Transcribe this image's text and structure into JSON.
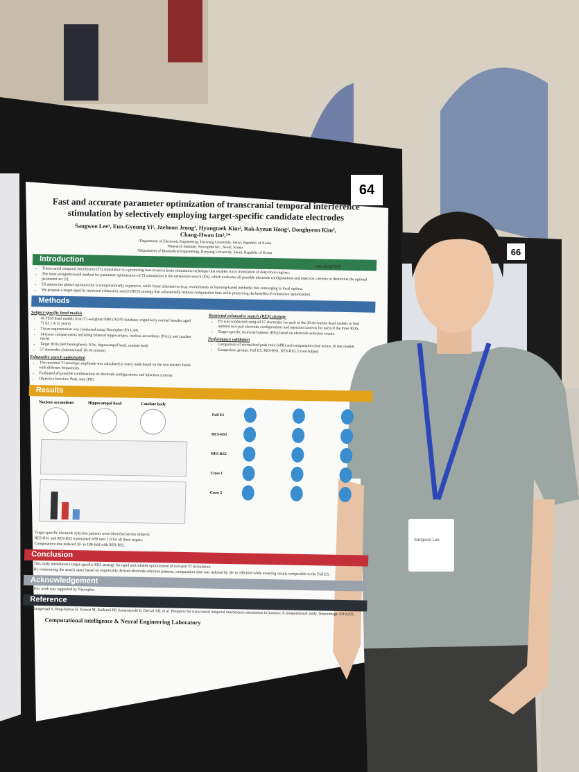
{
  "poster": {
    "number": "64",
    "title": "Fast and accurate parameter optimization of transcranial temporal interference stimulation by selectively employing target-specific candidate electrodes",
    "authors": "Sangwoo Lee¹, Eun-Gyoung Yi², Jaehoon Jeong¹, Hyungtaek Kim², Rak-kyeun Hong², Donghyeon Kim², Chang-Hwan Im¹,³*",
    "affiliations": [
      "¹Department of Electronic Engineering, Hanyang University, Seoul, Republic of Korea",
      "²Research Institute, Neurophet Inc., Seoul, Korea",
      "³Department of Biomedical Engineering, Hanyang University, Seoul, Republic of Korea"
    ],
    "logo": "neurophet",
    "introduction": {
      "heading": "Introduction",
      "bullets": [
        "Transcranial temporal interference (TI) stimulation is a promising non-invasive brain stimulation technique that enables focal stimulation of deep brain regions.",
        "The most straightforward method for parameter optimization of TI stimulation is the exhaustive search (ES), which evaluates all possible electrode configurations and injection currents to determine the optimal parameter set [1].",
        "ES attains the global optimum but is computationally expensive, while faster alternatives (e.g., evolutionary or learning-based methods) risk converging to local optima.",
        "We propose a target-specific restricted exhaustive search (RES) strategy that substantially reduces computation time while preserving the benefits of exhaustive optimization."
      ]
    },
    "methods": {
      "heading": "Methods",
      "left": [
        {
          "subheading": "Subject-specific head models",
          "bullets": [
            "40 FEM head models from T1-weighted MRI (ADNI database; cognitively normal females aged 71.62 ± 4.12 years)",
            "Tissue segmentation was conducted using Neurophet tES LAB.",
            "14 tissue compartments including bilateral hippocampus, nucleus accumbens (NAc), and caudate nuclei",
            "Target ROIs (left hemisphere): NAc, hippocampal head, caudate body",
            "57 electrodes (international 10-10 system)"
          ]
        },
        {
          "subheading": "Exhaustive search optimization",
          "bullets": [
            "The maximal TI envelope amplitude was calculated at every node based on the two electric fields with different frequencies.",
            "Evaluated all possible combinations of electrode configurations and injection currents",
            "Objective function: Peak ratio (PR)"
          ]
        }
      ],
      "right": [
        {
          "subheading": "Restricted exhaustive search (RES) strategy",
          "bullets": [
            "ES was conducted using all 57 electrodes for each of the 30 derivation head models to find optimal two-pair electrode configurations and injection currents for each of the three ROIs.",
            "Target-specific restricted subsets (RSs) based on electrode selection counts."
          ]
        },
        {
          "subheading": "Performance validation",
          "bullets": [
            "Comparison of normalized peak ratio (nPR) and computation time across 10 test models",
            "Comparison groups: Full ES, RES-RS1, RES-RS2, Cross-subject"
          ]
        }
      ]
    },
    "results": {
      "heading": "Results",
      "panels": [
        "Nucleus accumbens",
        "Hippocampal head",
        "Caudate body"
      ],
      "rows": [
        "Full ES",
        "RES-RS1",
        "RES-RS2",
        "Cross 1",
        "Cross 2"
      ],
      "bullets": [
        "Target-specific electrode selection patterns were identified across subjects.",
        "RES-RS1 and RES-RS2 maintained nPR near 1.0 for all three targets.",
        "Computation time reduced 30- to 100-fold with RES-RS2."
      ]
    },
    "conclusion": {
      "heading": "Conclusion",
      "bullets": [
        "This study introduced a target-specific RES strategy for rapid and reliable optimization of two-pair TI stimulation.",
        "By constraining the search space based on empirically derived electrode selection patterns, computation time was reduced by 30- to 100-fold while ensuring results comparable to the Full ES."
      ]
    },
    "acknowledgement": {
      "heading": "Acknowledgement",
      "text": "This work was supported by Neurophet."
    },
    "reference": {
      "heading": "Reference",
      "text": "[1] Rampersad S, Roig-Solvas B, Yarossi M, Kulkarni PP, Santarnecchi E, Dorval AD, et al. Prospects for transcranial temporal interference stimulation in humans: A computational study. Neuroimage 2019;202."
    },
    "footer": "Computational intelligence & Neural Engineering Laboratory"
  },
  "neighbor_poster": {
    "number": "66"
  },
  "badge": {
    "name": "Sangwoo Lee"
  }
}
